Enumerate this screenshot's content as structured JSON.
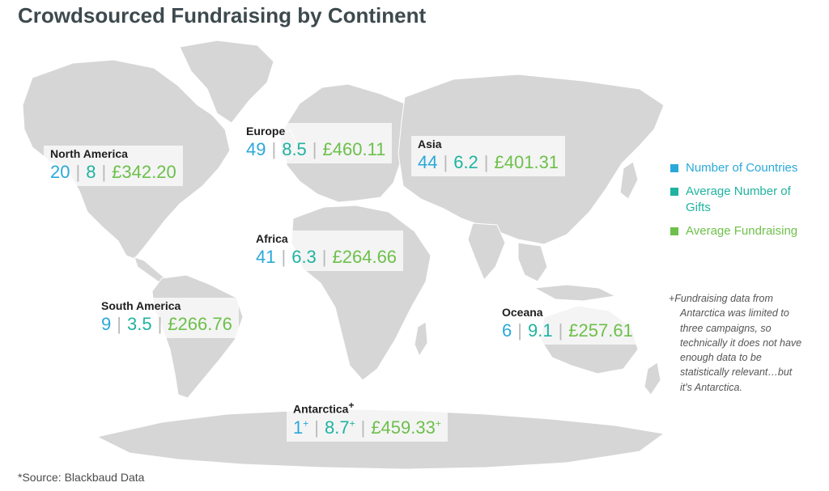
{
  "title": "Crowdsourced Fundraising by Continent",
  "colors": {
    "countries": "#2aa9d9",
    "gifts": "#20b3a1",
    "fundraising": "#6dc04b",
    "land": "#d6d6d6"
  },
  "continents": [
    {
      "name": "North America",
      "countries": "20",
      "gifts": "8",
      "fundraising": "£342.20"
    },
    {
      "name": "Europe",
      "countries": "49",
      "gifts": "8.5",
      "fundraising": "£460.11"
    },
    {
      "name": "Asia",
      "countries": "44",
      "gifts": "6.2",
      "fundraising": "£401.31"
    },
    {
      "name": "Africa",
      "countries": "41",
      "gifts": "6.3",
      "fundraising": "£264.66"
    },
    {
      "name": "South America",
      "countries": "9",
      "gifts": "3.5",
      "fundraising": "£266.76"
    },
    {
      "name": "Oceana",
      "countries": "6",
      "gifts": "9.1",
      "fundraising": "£257.61"
    },
    {
      "name": "Antarctica",
      "countries": "1",
      "gifts": "8.7",
      "fundraising": "£459.33",
      "mark": "+"
    }
  ],
  "legend": [
    {
      "label": "Number of Countries",
      "color": "#2aa9d9"
    },
    {
      "label": "Average Number of Gifts",
      "color": "#20b3a1"
    },
    {
      "label": "Average Fundraising",
      "color": "#6dc04b"
    }
  ],
  "footnote": "+Fundraising data from Antarctica was limited to three campaigns, so technically it does not have enough data to be statistically relevant…but it's Antarctica.",
  "source": "*Source: Blackbaud Data"
}
